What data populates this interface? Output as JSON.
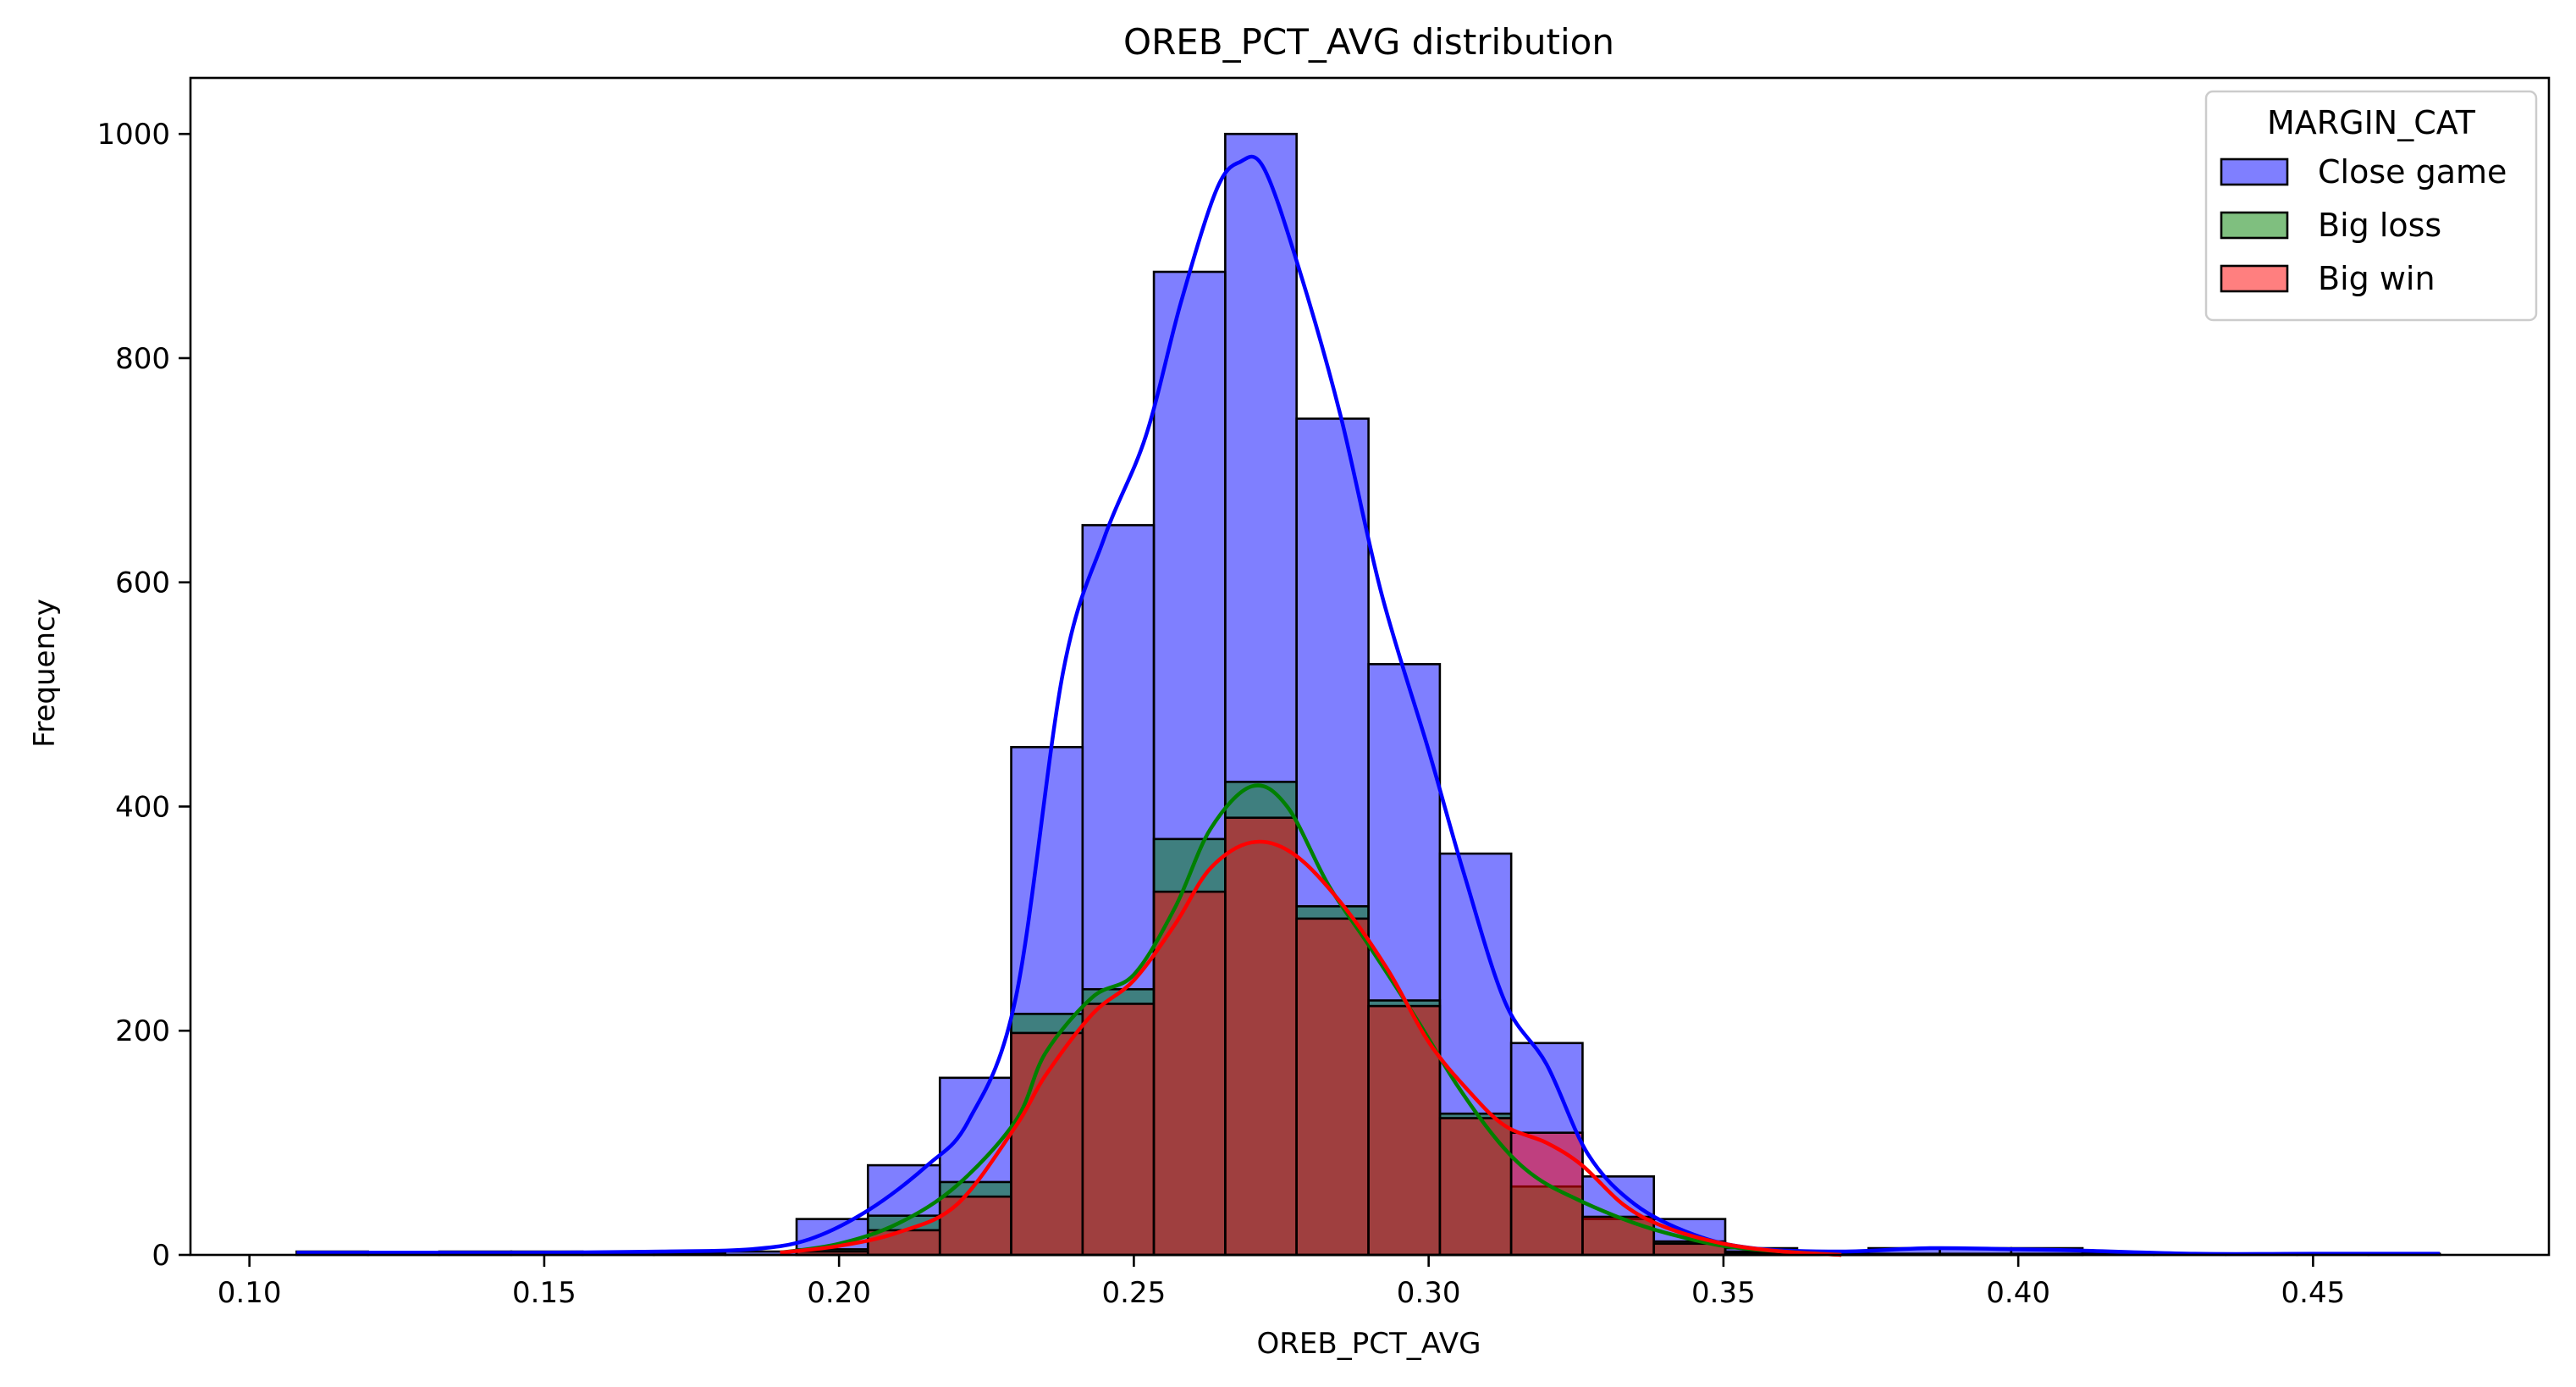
{
  "chart_data": {
    "type": "bar",
    "title": "OREB_PCT_AVG distribution",
    "xlabel": "OREB_PCT_AVG",
    "ylabel": "Frequency",
    "xlim": [
      0.09,
      0.49
    ],
    "ylim": [
      0,
      1050
    ],
    "xticks": [
      "0.10",
      "0.15",
      "0.20",
      "0.25",
      "0.30",
      "0.35",
      "0.40",
      "0.45"
    ],
    "yticks": [
      "0",
      "200",
      "400",
      "600",
      "800",
      "1000"
    ],
    "legend": {
      "title": "MARGIN_CAT",
      "placement": "top-right"
    },
    "bin_edges": [
      0.108,
      0.1201,
      0.1322,
      0.1444,
      0.1565,
      0.1686,
      0.1807,
      0.1928,
      0.2049,
      0.2171,
      0.2292,
      0.2413,
      0.2534,
      0.2655,
      0.2776,
      0.2898,
      0.3019,
      0.314,
      0.3261,
      0.3382,
      0.3503,
      0.3625,
      0.3746,
      0.3867,
      0.3988,
      0.4109,
      0.423,
      0.4352,
      0.4473,
      0.4594,
      0.4715
    ],
    "series": [
      {
        "name": "Close game",
        "color": "#0000ff",
        "counts": [
          3,
          2,
          3,
          3,
          2,
          2,
          3,
          32,
          80,
          158,
          453,
          651,
          877,
          1000,
          746,
          527,
          358,
          189,
          70,
          32,
          6,
          3,
          6,
          6,
          6,
          2,
          1,
          1,
          1,
          1
        ],
        "kde": [
          [
            0.108,
            2
          ],
          [
            0.13,
            2
          ],
          [
            0.15,
            2
          ],
          [
            0.17,
            3
          ],
          [
            0.185,
            5
          ],
          [
            0.195,
            14
          ],
          [
            0.205,
            40
          ],
          [
            0.215,
            80
          ],
          [
            0.222,
            120
          ],
          [
            0.23,
            230
          ],
          [
            0.238,
            520
          ],
          [
            0.245,
            640
          ],
          [
            0.252,
            730
          ],
          [
            0.258,
            850
          ],
          [
            0.264,
            950
          ],
          [
            0.268,
            975
          ],
          [
            0.272,
            970
          ],
          [
            0.278,
            880
          ],
          [
            0.285,
            750
          ],
          [
            0.292,
            590
          ],
          [
            0.3,
            450
          ],
          [
            0.306,
            340
          ],
          [
            0.313,
            225
          ],
          [
            0.32,
            170
          ],
          [
            0.327,
            90
          ],
          [
            0.335,
            45
          ],
          [
            0.345,
            18
          ],
          [
            0.355,
            6
          ],
          [
            0.37,
            3
          ],
          [
            0.385,
            6
          ],
          [
            0.4,
            5
          ],
          [
            0.41,
            4
          ],
          [
            0.43,
            1
          ],
          [
            0.45,
            1
          ],
          [
            0.4715,
            1
          ]
        ]
      },
      {
        "name": "Big loss",
        "color": "#008000",
        "counts": [
          0,
          0,
          0,
          0,
          0,
          0,
          0,
          5,
          35,
          65,
          215,
          237,
          371,
          422,
          311,
          227,
          126,
          61,
          32,
          12,
          3,
          1,
          1,
          1,
          1,
          0,
          0,
          0,
          0,
          0
        ],
        "kde": [
          [
            0.19,
            2
          ],
          [
            0.2,
            10
          ],
          [
            0.21,
            28
          ],
          [
            0.22,
            62
          ],
          [
            0.23,
            120
          ],
          [
            0.235,
            180
          ],
          [
            0.243,
            230
          ],
          [
            0.25,
            250
          ],
          [
            0.257,
            310
          ],
          [
            0.263,
            380
          ],
          [
            0.27,
            418
          ],
          [
            0.276,
            400
          ],
          [
            0.283,
            330
          ],
          [
            0.29,
            275
          ],
          [
            0.298,
            210
          ],
          [
            0.305,
            150
          ],
          [
            0.312,
            100
          ],
          [
            0.318,
            70
          ],
          [
            0.325,
            50
          ],
          [
            0.333,
            32
          ],
          [
            0.34,
            20
          ],
          [
            0.35,
            8
          ],
          [
            0.36,
            3
          ],
          [
            0.37,
            0
          ]
        ]
      },
      {
        "name": "Big win",
        "color": "#ff0000",
        "counts": [
          0,
          0,
          0,
          0,
          0,
          0,
          0,
          3,
          22,
          52,
          198,
          224,
          324,
          390,
          300,
          222,
          122,
          109,
          34,
          10,
          2,
          1,
          0,
          0,
          0,
          0,
          0,
          0,
          0,
          0
        ],
        "kde": [
          [
            0.19,
            2
          ],
          [
            0.2,
            8
          ],
          [
            0.21,
            20
          ],
          [
            0.22,
            45
          ],
          [
            0.23,
            115
          ],
          [
            0.235,
            160
          ],
          [
            0.243,
            215
          ],
          [
            0.25,
            245
          ],
          [
            0.257,
            295
          ],
          [
            0.263,
            345
          ],
          [
            0.27,
            368
          ],
          [
            0.277,
            358
          ],
          [
            0.285,
            315
          ],
          [
            0.293,
            255
          ],
          [
            0.3,
            190
          ],
          [
            0.307,
            145
          ],
          [
            0.313,
            115
          ],
          [
            0.32,
            100
          ],
          [
            0.326,
            80
          ],
          [
            0.333,
            45
          ],
          [
            0.34,
            25
          ],
          [
            0.35,
            10
          ],
          [
            0.36,
            3
          ],
          [
            0.37,
            0
          ]
        ]
      }
    ]
  }
}
